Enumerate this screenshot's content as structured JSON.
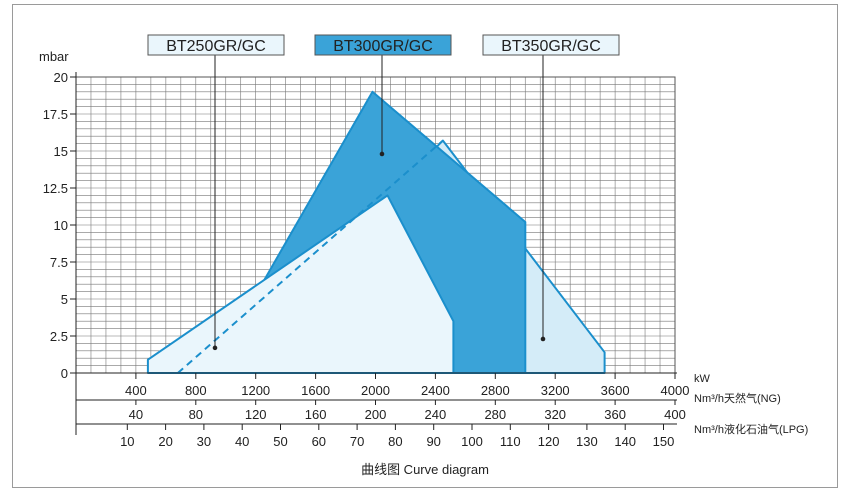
{
  "chart_data": {
    "type": "area",
    "ylabel": "mbar",
    "ylim": [
      0,
      20
    ],
    "yticks": [
      "20",
      "17.5",
      "15",
      "12.5",
      "10",
      "7.5",
      "5",
      "2.5",
      "0"
    ],
    "xlim_kw": [
      0,
      4000
    ],
    "grid": true,
    "legend_position": "top",
    "axes": [
      {
        "unit": "kW",
        "ticks": [
          "400",
          "800",
          "1200",
          "1600",
          "2000",
          "2400",
          "2800",
          "3200",
          "3600",
          "4000"
        ]
      },
      {
        "unit": "Nm³/h天然气(NG)",
        "ticks": [
          "40",
          "80",
          "120",
          "160",
          "200",
          "240",
          "280",
          "320",
          "360",
          "400"
        ]
      },
      {
        "unit": "Nm³/h液化石油气(LPG)",
        "ticks": [
          "10",
          "20",
          "30",
          "40",
          "50",
          "60",
          "70",
          "80",
          "90",
          "100",
          "110",
          "120",
          "130",
          "140",
          "150"
        ]
      }
    ],
    "series": [
      {
        "name": "BT250GR/GC",
        "fill": "#eaf6fc",
        "points": [
          [
            480,
            0
          ],
          [
            480,
            0.9
          ],
          [
            2080,
            12
          ],
          [
            2520,
            3.5
          ],
          [
            2520,
            0
          ]
        ]
      },
      {
        "name": "BT300GR/GC",
        "fill": "#3aa3d8",
        "points": [
          [
            900,
            0
          ],
          [
            1980,
            19
          ],
          [
            3000,
            10.2
          ],
          [
            3000,
            0
          ]
        ]
      },
      {
        "name": "BT350GR/GC",
        "fill": "#d4ecf8",
        "points": [
          [
            900,
            0
          ],
          [
            2450,
            15.7
          ],
          [
            3530,
            1.4
          ],
          [
            3530,
            0
          ]
        ]
      }
    ],
    "dashed_line": [
      [
        680,
        0
      ],
      [
        2450,
        15.7
      ]
    ],
    "colors": {
      "outline": "#1b8fcc",
      "grid": "#555555",
      "background": "#ffffff"
    }
  },
  "caption": {
    "cn": "曲线图",
    "en": "Curve diagram"
  }
}
